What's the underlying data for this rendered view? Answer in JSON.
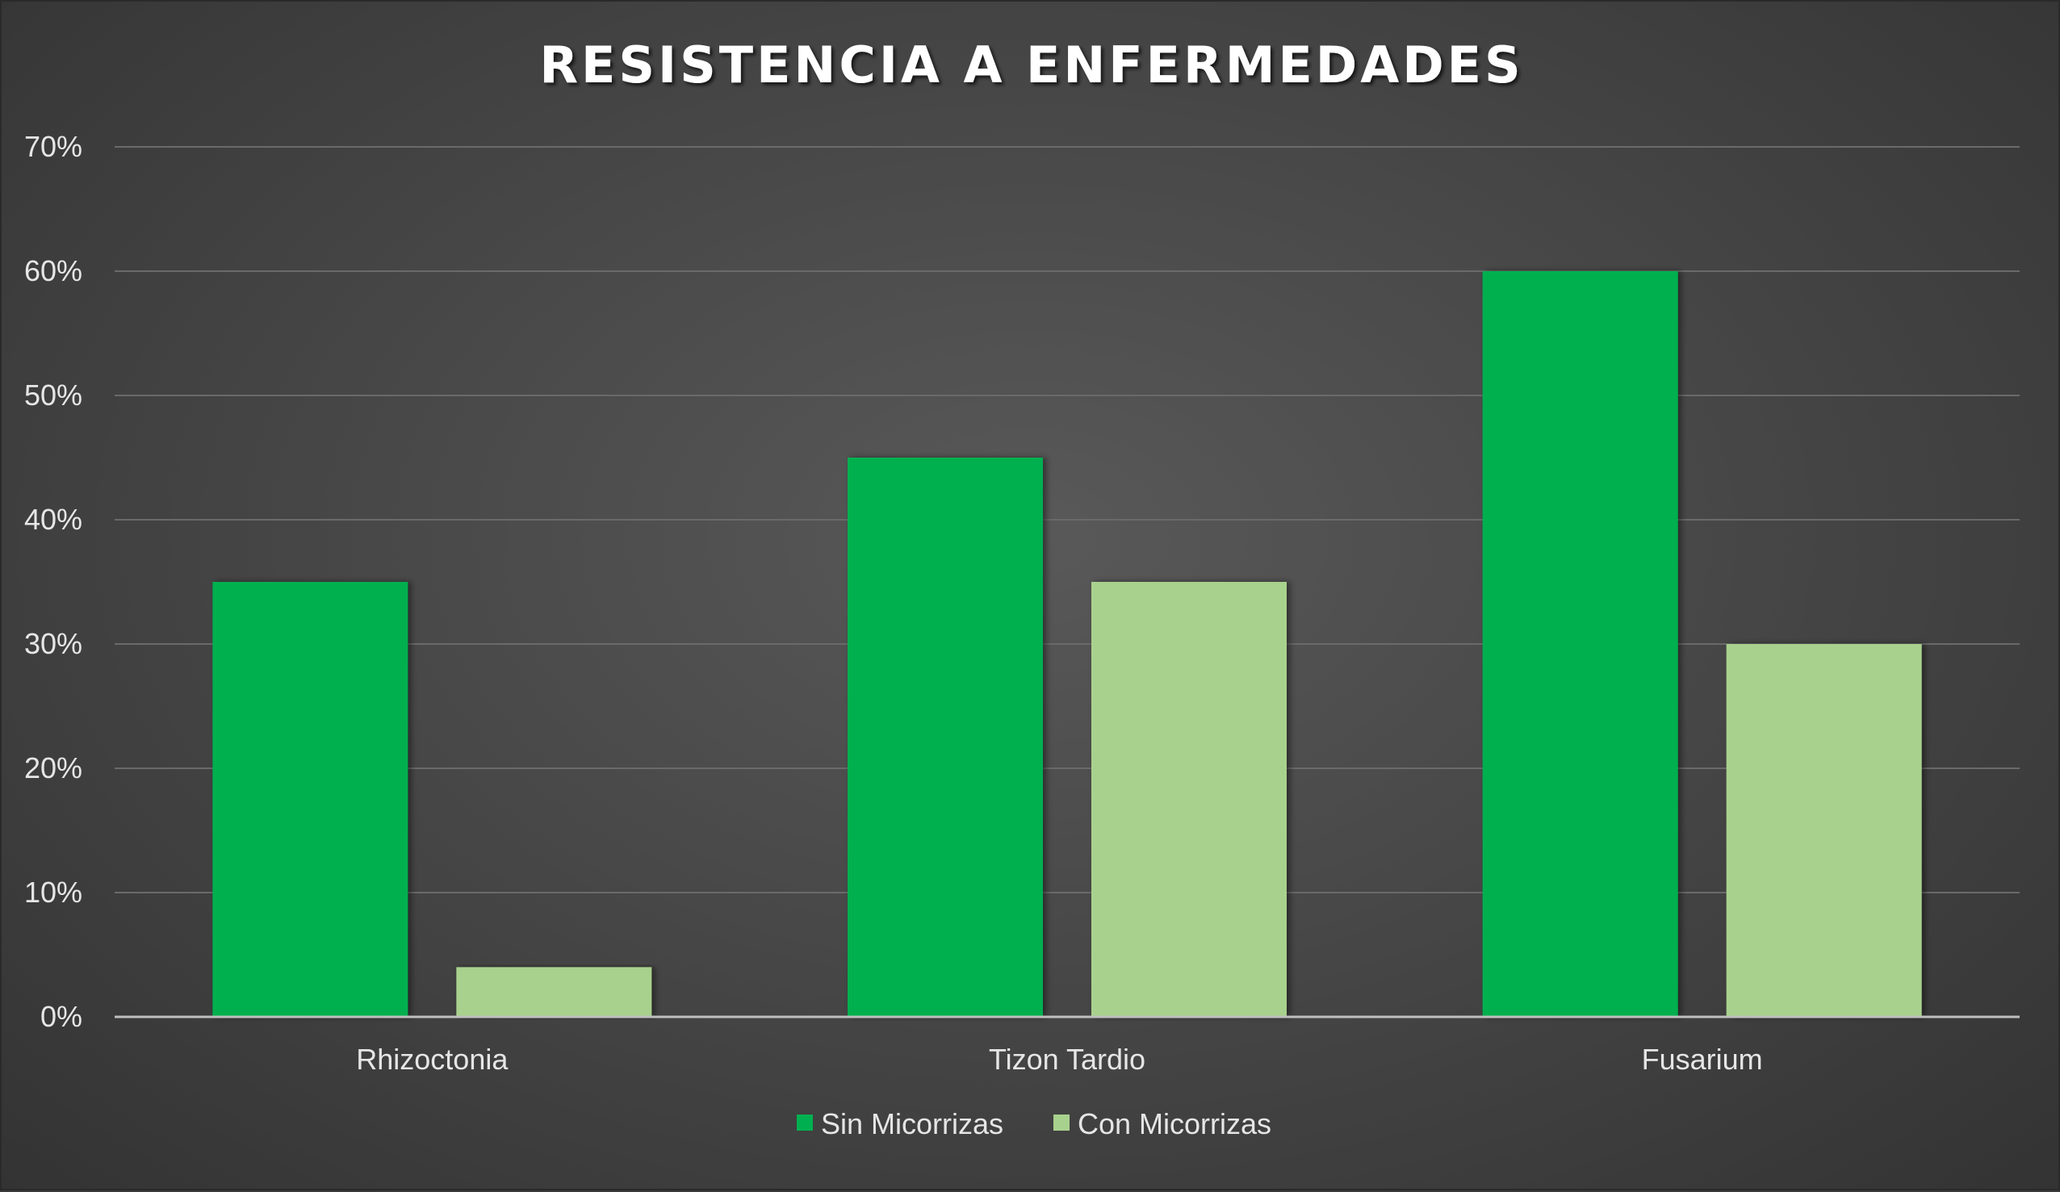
{
  "chart_data": {
    "type": "bar",
    "title": "RESISTENCIA A ENFERMEDADES",
    "categories": [
      "Rhizoctonia",
      "Tizon Tardio",
      "Fusarium"
    ],
    "series": [
      {
        "name": "Sin Micorrizas",
        "values": [
          35,
          45,
          60
        ],
        "color": "#00B050"
      },
      {
        "name": "Con Micorrizas",
        "values": [
          4,
          35,
          30
        ],
        "color": "#A9D18E"
      }
    ],
    "ylim": [
      0,
      70
    ],
    "yticks": [
      0,
      10,
      20,
      30,
      40,
      50,
      60,
      70
    ],
    "ytick_labels": [
      "0%",
      "10%",
      "20%",
      "30%",
      "40%",
      "50%",
      "60%",
      "70%"
    ],
    "grid": true,
    "legend_position": "bottom",
    "xlabel": "",
    "ylabel": ""
  }
}
